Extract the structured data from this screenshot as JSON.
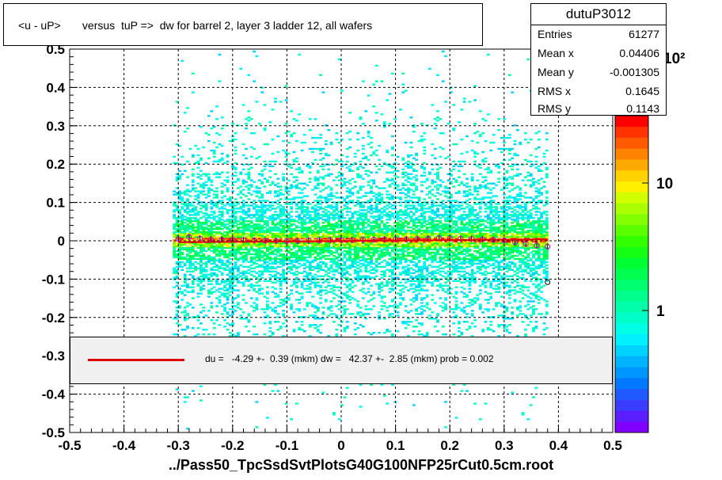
{
  "title": "<u - uP>       versus  tuP =>  dw for barrel 2, layer 3 ladder 12, all wafers",
  "stats": {
    "name": "dutuP3012",
    "rows": [
      {
        "label": "Entries",
        "value": "61277"
      },
      {
        "label": "Mean x",
        "value": "0.04406"
      },
      {
        "label": "Mean y",
        "value": "-0.001305"
      },
      {
        "label": "RMS x",
        "value": "0.1645"
      },
      {
        "label": "RMS y",
        "value": "0.1143"
      }
    ]
  },
  "fit_text": "du =   -4.29 +-  0.39 (mkm) dw =   42.37 +-  2.85 (mkm) prob = 0.002",
  "xaxis_title": "../Pass50_TpcSsdSvtPlotsG40G100NFP25rCut0.5cm.root",
  "colors": {
    "fit_line": "#e00000",
    "hist_low": "#00e0ff",
    "hist_high": "#ff2000",
    "palette": [
      "#7f00ff",
      "#5a1eff",
      "#3c3cff",
      "#1e5aff",
      "#0078ff",
      "#0096ff",
      "#00b4ff",
      "#00d2ff",
      "#00f0ff",
      "#00ffe6",
      "#00ffc8",
      "#00ffaa",
      "#00ff8c",
      "#00ff6e",
      "#00ff50",
      "#00ff32",
      "#14ff14",
      "#32ff00",
      "#5aff00",
      "#82ff00",
      "#aaff00",
      "#d2ff00",
      "#fff000",
      "#ffd200",
      "#ffaa00",
      "#ff8200",
      "#ff5a00",
      "#ff3200",
      "#ff0000"
    ]
  },
  "chart_data": {
    "type": "heatmap",
    "x_range": [
      -0.5,
      0.5
    ],
    "y_range": [
      -0.5,
      0.5
    ],
    "x_ticks": [
      "-0.5",
      "-0.4",
      "-0.3",
      "-0.2",
      "-0.1",
      "0",
      "0.1",
      "0.2",
      "0.3",
      "0.4",
      "0.5"
    ],
    "y_ticks": [
      "-0.5",
      "-0.4",
      "-0.3",
      "-0.2",
      "-0.1",
      "0",
      "0.1",
      "0.2",
      "0.3",
      "0.4",
      "0.5"
    ],
    "z_scale": "log",
    "z_ticks": [
      "1",
      "10"
    ],
    "z_top_label": "10²",
    "grid": true,
    "occupied_x_range": [
      -0.31,
      0.38
    ],
    "band_y_center": 0.0,
    "profile_points": {
      "x": [
        -0.3,
        -0.28,
        -0.26,
        -0.24,
        -0.22,
        -0.2,
        -0.18,
        -0.16,
        -0.14,
        -0.12,
        -0.1,
        -0.08,
        -0.06,
        -0.04,
        -0.02,
        0.0,
        0.02,
        0.04,
        0.06,
        0.08,
        0.1,
        0.12,
        0.14,
        0.16,
        0.18,
        0.2,
        0.22,
        0.24,
        0.26,
        0.28,
        0.3,
        0.32,
        0.34,
        0.36,
        0.38
      ],
      "y": [
        0.005,
        0.01,
        0.006,
        0.004,
        0.003,
        0.003,
        0.002,
        0.001,
        0.0,
        0.0,
        -0.001,
        0.0,
        0.001,
        0.001,
        0.002,
        0.002,
        0.002,
        0.003,
        0.003,
        0.004,
        0.004,
        0.004,
        0.005,
        0.006,
        0.007,
        0.006,
        0.006,
        0.005,
        0.004,
        0.003,
        0.001,
        -0.004,
        -0.008,
        -0.012,
        -0.015
      ]
    },
    "outlier_point": {
      "x": 0.38,
      "y": -0.108
    },
    "fit_line": {
      "x": [
        -0.3,
        0.38
      ],
      "y": [
        -0.004,
        0.004
      ]
    }
  }
}
